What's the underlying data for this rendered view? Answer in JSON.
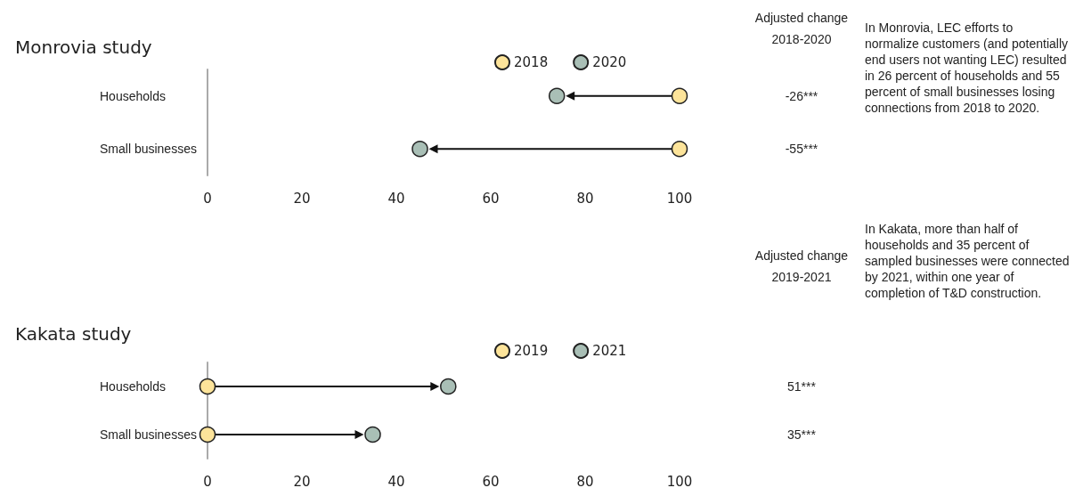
{
  "chart_data": [
    {
      "type": "scatter",
      "title": "Monrovia study",
      "categories": [
        "Households",
        "Small businesses"
      ],
      "orientation": "horizontal",
      "series": [
        {
          "name": "2018",
          "color": "#fde49a",
          "values": [
            100,
            100
          ]
        },
        {
          "name": "2020",
          "color": "#a9bfb6",
          "values": [
            74,
            45
          ]
        }
      ],
      "xlim": [
        0,
        100
      ],
      "xticks": [
        0,
        20,
        40,
        60,
        80,
        100
      ],
      "grid": false,
      "legend": "top",
      "marker": "circle",
      "annotations": [
        "Adjusted change\n2018-2020",
        "In Monrovia, LEC efforts to normalize customers (and potentially end users not wanting LEC) resulted in 26 percent of households and 55 percent of small businesses losing connections from 2018 to 2020.",
        "-26***",
        "-55***"
      ]
    },
    {
      "type": "scatter",
      "title": "Kakata study",
      "categories": [
        "Households",
        "Small businesses"
      ],
      "orientation": "horizontal",
      "series": [
        {
          "name": "2019",
          "color": "#fde49a",
          "values": [
            0,
            0
          ]
        },
        {
          "name": "2021",
          "color": "#a9bfb6",
          "values": [
            51,
            35
          ]
        }
      ],
      "xlim": [
        0,
        100
      ],
      "xticks": [
        0,
        20,
        40,
        60,
        80,
        100
      ],
      "grid": false,
      "legend": "top",
      "marker": "circle",
      "annotations": [
        "Adjusted change\n2019-2021",
        "In Kakata, more than half of households and 35 percent of sampled businesses were connected by 2021, within one year of completion of T&D construction.",
        "51***",
        "35***"
      ]
    }
  ]
}
